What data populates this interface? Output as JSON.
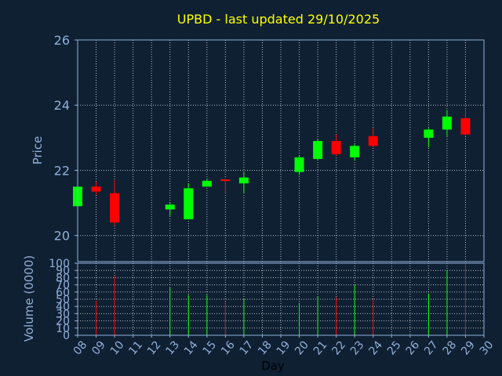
{
  "chart_data": [
    {
      "type": "candlestick",
      "title": "UPBD - last updated 29/10/2025",
      "ylabel": "Price",
      "ylim": [
        19.2,
        26
      ],
      "y_ticks": [
        20,
        22,
        24,
        26
      ],
      "grid": true,
      "x_days": [
        "08",
        "09",
        "10",
        "11",
        "12",
        "13",
        "14",
        "15",
        "16",
        "17",
        "18",
        "19",
        "20",
        "21",
        "22",
        "23",
        "24",
        "25",
        "26",
        "27",
        "28",
        "29",
        "30"
      ],
      "candles": [
        {
          "day": 8,
          "open": 20.9,
          "high": 21.5,
          "low": 20.9,
          "close": 21.5
        },
        {
          "day": 9,
          "open": 21.5,
          "high": 21.65,
          "low": 21.25,
          "close": 21.35
        },
        {
          "day": 10,
          "open": 21.3,
          "high": 21.7,
          "low": 20.3,
          "close": 20.4
        },
        {
          "day": 13,
          "open": 20.8,
          "high": 21.0,
          "low": 20.6,
          "close": 20.95
        },
        {
          "day": 14,
          "open": 20.5,
          "high": 21.6,
          "low": 20.5,
          "close": 21.45
        },
        {
          "day": 15,
          "open": 21.5,
          "high": 21.75,
          "low": 21.5,
          "close": 21.68
        },
        {
          "day": 16,
          "open": 21.72,
          "high": 21.75,
          "low": 21.3,
          "close": 21.67
        },
        {
          "day": 17,
          "open": 21.6,
          "high": 21.95,
          "low": 21.3,
          "close": 21.78
        },
        {
          "day": 20,
          "open": 21.95,
          "high": 22.45,
          "low": 21.85,
          "close": 22.4
        },
        {
          "day": 21,
          "open": 22.35,
          "high": 22.95,
          "low": 22.3,
          "close": 22.9
        },
        {
          "day": 22,
          "open": 22.9,
          "high": 23.1,
          "low": 22.45,
          "close": 22.5
        },
        {
          "day": 23,
          "open": 22.4,
          "high": 22.8,
          "low": 22.3,
          "close": 22.75
        },
        {
          "day": 24,
          "open": 23.05,
          "high": 23.3,
          "low": 22.7,
          "close": 22.75
        },
        {
          "day": 27,
          "open": 23.0,
          "high": 23.3,
          "low": 22.7,
          "close": 23.25
        },
        {
          "day": 28,
          "open": 23.25,
          "high": 23.85,
          "low": 23.05,
          "close": 23.65
        },
        {
          "day": 29,
          "open": 23.6,
          "high": 23.9,
          "low": 23.05,
          "close": 23.1
        }
      ]
    },
    {
      "type": "bar",
      "ylabel": "Volume (0000)",
      "xlabel": "Day",
      "ylim": [
        0,
        100
      ],
      "y_ticks": [
        0,
        10,
        20,
        30,
        40,
        50,
        60,
        70,
        80,
        90,
        100
      ],
      "grid": true,
      "volumes": [
        {
          "day": 8,
          "value": 0,
          "up": true
        },
        {
          "day": 9,
          "value": 48,
          "up": false
        },
        {
          "day": 10,
          "value": 82,
          "up": false
        },
        {
          "day": 13,
          "value": 66,
          "up": true
        },
        {
          "day": 14,
          "value": 56,
          "up": true
        },
        {
          "day": 15,
          "value": 56,
          "up": true
        },
        {
          "day": 16,
          "value": 47,
          "up": false
        },
        {
          "day": 17,
          "value": 50,
          "up": true
        },
        {
          "day": 20,
          "value": 45,
          "up": true
        },
        {
          "day": 21,
          "value": 54,
          "up": true
        },
        {
          "day": 22,
          "value": 53,
          "up": false
        },
        {
          "day": 23,
          "value": 70,
          "up": true
        },
        {
          "day": 24,
          "value": 50,
          "up": false
        },
        {
          "day": 27,
          "value": 58,
          "up": true
        },
        {
          "day": 28,
          "value": 90,
          "up": true
        },
        {
          "day": 29,
          "value": 100,
          "up": false
        }
      ]
    }
  ],
  "colors": {
    "background": "#0f2033",
    "up": "#00ff00",
    "down": "#ff0000",
    "axis": "#90b0d8",
    "grid": "#ffffff",
    "title": "#ffff00"
  }
}
